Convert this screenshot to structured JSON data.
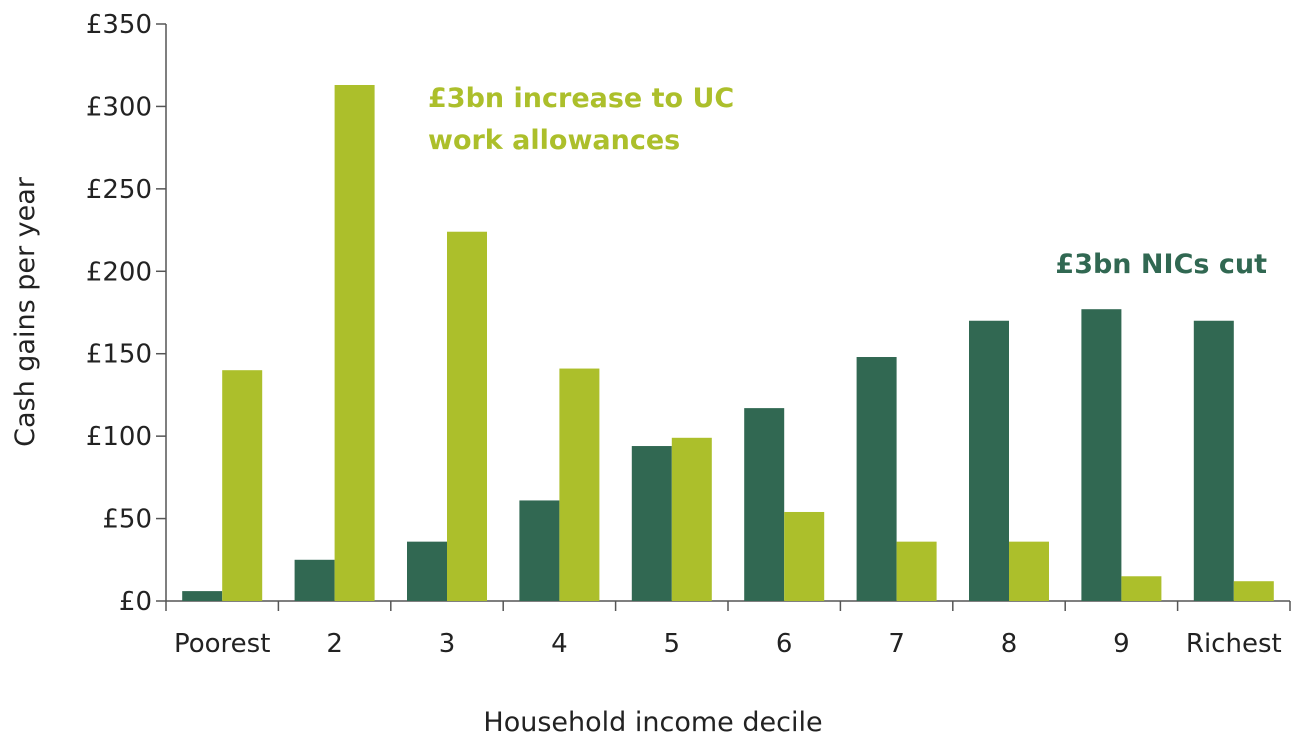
{
  "chart_data": {
    "type": "bar",
    "title": "",
    "xlabel": "Household income decile",
    "ylabel": "Cash gains per year",
    "categories": [
      "Poorest",
      "2",
      "3",
      "4",
      "5",
      "6",
      "7",
      "8",
      "9",
      "Richest"
    ],
    "y_tick_labels": [
      "£0",
      "£50",
      "£100",
      "£150",
      "£200",
      "£250",
      "£300",
      "£350"
    ],
    "y_ticks": [
      0,
      50,
      100,
      150,
      200,
      250,
      300,
      350
    ],
    "ylim": [
      0,
      350
    ],
    "grid": false,
    "legend": "none",
    "series": [
      {
        "key": "nics",
        "values": [
          6,
          25,
          36,
          61,
          94,
          117,
          148,
          170,
          177,
          170
        ],
        "color": "#316852"
      },
      {
        "key": "uc",
        "values": [
          140,
          313,
          224,
          141,
          99,
          54,
          36,
          36,
          15,
          12
        ],
        "color": "#acbf2b"
      }
    ],
    "annotations": [
      {
        "series_key": "uc",
        "lines": [
          "£3bn increase to UC",
          "work allowances"
        ],
        "color": "#acbf2b"
      },
      {
        "series_key": "nics",
        "lines": [
          "£3bn NICs cut"
        ],
        "color": "#316852"
      }
    ]
  }
}
